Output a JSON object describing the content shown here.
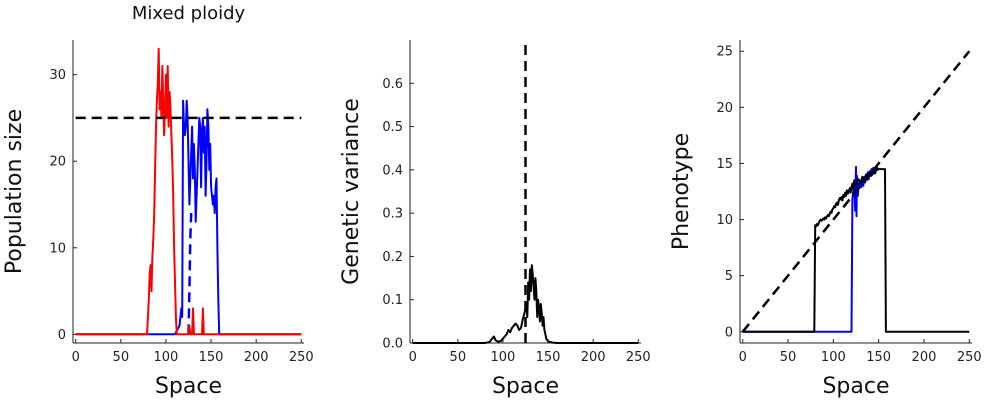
{
  "chart_data": [
    {
      "type": "line",
      "title": "Mixed ploidy",
      "xlabel": "Space",
      "ylabel": "Population size",
      "xlim": [
        -3,
        253
      ],
      "ylim": [
        -1,
        34
      ],
      "xticks": [
        0,
        50,
        100,
        150,
        200,
        250
      ],
      "yticks": [
        0,
        10,
        20,
        30
      ],
      "grid": false,
      "series": [
        {
          "color": "#0000ff",
          "x": [
            0,
            110,
            115,
            117,
            118,
            119,
            120,
            121,
            122,
            123,
            124,
            125,
            126,
            127,
            128,
            129,
            130,
            131,
            132,
            133,
            134,
            135,
            136,
            137,
            138,
            139,
            140,
            141,
            142,
            143,
            144,
            145,
            146,
            147,
            148,
            149,
            150,
            151,
            152,
            153,
            154,
            155,
            156,
            157,
            158,
            159,
            160,
            250
          ],
          "y": [
            0,
            0,
            1,
            3,
            2,
            27,
            24,
            23,
            24,
            27,
            25,
            20,
            15,
            18,
            21,
            24,
            18,
            22,
            19,
            13,
            16,
            19,
            22,
            25,
            24,
            17,
            23,
            25,
            21,
            24,
            16,
            20,
            26,
            24,
            19,
            22,
            17,
            16,
            15,
            16,
            14,
            17,
            18,
            10,
            4,
            0,
            0,
            0
          ]
        },
        {
          "color": "#0000ff",
          "dashed": true,
          "x": [
            125,
            126,
            127,
            128
          ],
          "y": [
            0,
            5,
            11,
            14
          ]
        },
        {
          "color": "#ff0000",
          "x": [
            0,
            79,
            80,
            81,
            82,
            83,
            84,
            85,
            86,
            87,
            88,
            89,
            90,
            91,
            92,
            93,
            94,
            95,
            96,
            97,
            98,
            99,
            100,
            101,
            102,
            103,
            104,
            105,
            106,
            107,
            108,
            109,
            110,
            111,
            112,
            113,
            114,
            115,
            116,
            117,
            118,
            119,
            120,
            121,
            122,
            123,
            124,
            125,
            126,
            127,
            128,
            129,
            130,
            131,
            132,
            133,
            134,
            135,
            136,
            137,
            138,
            139,
            140,
            141,
            142,
            143,
            144,
            250
          ],
          "y": [
            0,
            0,
            2,
            4,
            7,
            8,
            5,
            9,
            11,
            14,
            19,
            24,
            27,
            29,
            33,
            26,
            28,
            25,
            31,
            27,
            23,
            26,
            30,
            25,
            31,
            24,
            28,
            26,
            23,
            20,
            16,
            10,
            6,
            2,
            0,
            0,
            0,
            0,
            0,
            0,
            0,
            0,
            0,
            0,
            0,
            0,
            0,
            0,
            1,
            0,
            0,
            0,
            3,
            0,
            0,
            0,
            0,
            0,
            0,
            0,
            0,
            0,
            0,
            3,
            0,
            0,
            0,
            0
          ]
        },
        {
          "color": "#000000",
          "dashed": true,
          "x": [
            0,
            250
          ],
          "y": [
            25,
            25
          ]
        }
      ]
    },
    {
      "type": "line",
      "xlabel": "Space",
      "ylabel": "Genetic variance",
      "xlim": [
        -3,
        253
      ],
      "ylim": [
        0,
        0.7
      ],
      "xticks": [
        0,
        50,
        100,
        150,
        200,
        250
      ],
      "yticks": [
        0.0,
        0.1,
        0.2,
        0.3,
        0.4,
        0.5,
        0.6
      ],
      "grid": false,
      "series": [
        {
          "color": "#000000",
          "x": [
            0,
            80,
            85,
            88,
            90,
            92,
            95,
            98,
            100,
            102,
            104,
            106,
            108,
            110,
            112,
            114,
            116,
            118,
            120,
            122,
            124,
            126,
            127,
            128,
            129,
            130,
            131,
            132,
            133,
            134,
            135,
            136,
            137,
            138,
            139,
            140,
            141,
            142,
            143,
            144,
            145,
            146,
            147,
            148,
            150,
            155,
            160,
            250
          ],
          "y": [
            0,
            0,
            0.002,
            0.01,
            0.015,
            0.006,
            0.003,
            0.005,
            0.01,
            0.015,
            0.02,
            0.03,
            0.025,
            0.035,
            0.04,
            0.045,
            0.04,
            0.03,
            0.035,
            0.055,
            0.07,
            0.09,
            0.06,
            0.14,
            0.1,
            0.17,
            0.12,
            0.18,
            0.16,
            0.13,
            0.1,
            0.15,
            0.12,
            0.06,
            0.1,
            0.08,
            0.05,
            0.09,
            0.07,
            0.04,
            0.06,
            0.03,
            0.02,
            0.01,
            0.004,
            0.001,
            0,
            0
          ]
        },
        {
          "color": "#000000",
          "dashed": true,
          "x": [
            125,
            125
          ],
          "y": [
            0,
            0.7
          ]
        }
      ]
    },
    {
      "type": "line",
      "xlabel": "Space",
      "ylabel": "Phenotype",
      "xlim": [
        -3,
        253
      ],
      "ylim": [
        -1,
        26
      ],
      "xticks": [
        0,
        50,
        100,
        150,
        200,
        250
      ],
      "yticks": [
        0,
        5,
        10,
        15,
        20,
        25
      ],
      "grid": false,
      "series": [
        {
          "color": "#0000ff",
          "x": [
            0,
            120,
            121,
            122,
            123,
            124,
            125,
            125.5,
            126,
            127,
            128,
            129,
            130,
            131,
            132,
            133,
            134,
            135,
            136,
            137,
            138,
            139,
            140,
            141,
            142,
            143,
            144,
            145,
            146,
            147,
            148,
            150
          ],
          "y": [
            0,
            0,
            11.8,
            12.6,
            13.5,
            10.8,
            14.7,
            10.3,
            13.9,
            12.1,
            13.2,
            12.8,
            13.4,
            12.9,
            13.6,
            13.0,
            13.8,
            13.3,
            14.0,
            13.5,
            14.2,
            13.6,
            14.3,
            13.9,
            14.5,
            14.0,
            14.6,
            14.1,
            14.4,
            14.6,
            14.4,
            14.5
          ]
        },
        {
          "color": "#000000",
          "x": [
            0,
            79,
            80,
            81,
            82,
            83,
            84,
            85,
            86,
            87,
            88,
            89,
            90,
            91,
            92,
            93,
            94,
            95,
            96,
            97,
            98,
            99,
            100,
            101,
            102,
            103,
            104,
            105,
            106,
            107,
            108,
            109,
            110,
            111,
            112,
            113,
            114,
            115,
            116,
            117,
            118,
            119,
            120,
            121,
            122,
            123,
            124,
            126,
            128,
            130,
            132,
            134,
            136,
            138,
            140,
            142,
            144,
            146,
            148,
            150,
            152,
            154,
            156,
            157,
            158,
            250
          ],
          "y": [
            0,
            0,
            9.5,
            9.4,
            9.6,
            9.5,
            9.7,
            9.9,
            10.0,
            9.9,
            10.0,
            10.1,
            10.0,
            10.2,
            10.1,
            10.3,
            10.4,
            10.3,
            10.5,
            10.7,
            10.6,
            10.9,
            11.0,
            11.2,
            11.1,
            11.4,
            11.5,
            11.3,
            11.7,
            11.9,
            11.8,
            12.0,
            11.7,
            12.2,
            12.0,
            12.4,
            12.1,
            12.6,
            12.3,
            12.5,
            12.8,
            12.4,
            12.9,
            13.2,
            12.7,
            13.4,
            13.0,
            13.3,
            13.6,
            13.2,
            13.8,
            13.5,
            14.0,
            13.7,
            14.2,
            13.9,
            14.4,
            14.1,
            14.6,
            14.5,
            14.5,
            14.5,
            14.5,
            14.5,
            0,
            0
          ]
        },
        {
          "color": "#000000",
          "dashed": true,
          "x": [
            0,
            250
          ],
          "y": [
            0,
            25
          ]
        }
      ]
    }
  ]
}
